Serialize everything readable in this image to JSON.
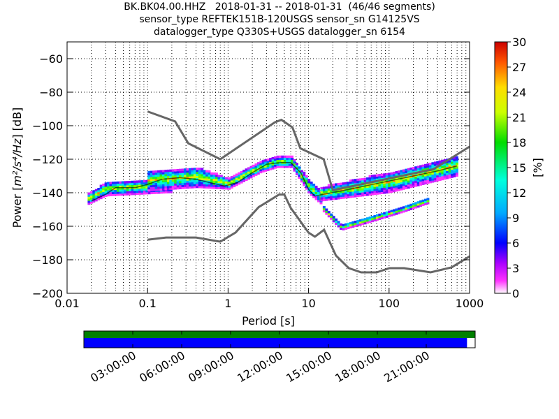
{
  "title": {
    "line1": "BK.BK04.00.HHZ   2018-01-31 -- 2018-01-31  (46/46 segments)",
    "line2": "sensor_type REFTEK151B-120USGS sensor_sn G14125VS",
    "line3": "datalogger_type Q330S+USGS datalogger_sn 6154"
  },
  "chart_data": [
    {
      "type": "heatmap",
      "xlabel": "Period [s]",
      "ylabel_prefix": "Power [",
      "ylabel_math": "m²/s⁴/Hz",
      "ylabel_suffix": "] [dB]",
      "x_scale": "log",
      "xlim": [
        0.01,
        1000
      ],
      "ylim": [
        -200,
        -50
      ],
      "x_ticks": [
        0.01,
        0.1,
        1,
        10,
        100,
        1000
      ],
      "x_tick_labels": [
        "0.01",
        "0.1",
        "1",
        "10",
        "100",
        "1000"
      ],
      "y_ticks": [
        -200,
        -180,
        -160,
        -140,
        -120,
        -100,
        -80,
        -60
      ],
      "y_tick_labels": [
        "−200",
        "−180",
        "−160",
        "−140",
        "−120",
        "−100",
        "−80",
        "−60"
      ],
      "grid": true,
      "colorbar": {
        "label": "[%]",
        "range": [
          0,
          30
        ],
        "ticks": [
          0,
          3,
          6,
          9,
          12,
          15,
          18,
          21,
          24,
          27,
          30
        ],
        "tick_labels": [
          "0",
          "3",
          "6",
          "9",
          "12",
          "15",
          "18",
          "21",
          "24",
          "27",
          "30"
        ]
      },
      "nhnm": {
        "x": [
          0.1,
          0.22,
          0.32,
          0.8,
          3.8,
          4.6,
          6.3,
          7.9,
          15.4,
          20,
          354.8,
          1000
        ],
        "y": [
          -91.5,
          -97.4,
          -110.5,
          -120,
          -98,
          -96.5,
          -101,
          -113.5,
          -120,
          -138.5,
          -126,
          -112.5
        ]
      },
      "nlnm": {
        "x": [
          0.1,
          0.17,
          0.4,
          0.8,
          1.24,
          2.4,
          4.3,
          5.0,
          6.0,
          10.0,
          12.0,
          15.6,
          21.9,
          31.6,
          45,
          70,
          101,
          154,
          328,
          600,
          1000
        ],
        "y": [
          -168,
          -166.7,
          -166.7,
          -169.2,
          -163.7,
          -148.6,
          -141.1,
          -141.1,
          -149,
          -163.8,
          -166.2,
          -162.1,
          -177.5,
          -185,
          -187.5,
          -187.5,
          -185,
          -185,
          -187.5,
          -184.5,
          -178
        ]
      },
      "mode_curve": {
        "x": [
          0.02,
          0.03,
          0.04,
          0.07,
          0.1,
          0.15,
          0.25,
          0.4,
          0.6,
          0.9,
          1.3,
          2.0,
          3.0,
          4.5,
          6.0,
          8.0,
          10.0,
          12.0,
          15.0,
          25.0,
          50.0,
          100.0,
          200.0,
          400.0,
          700.0
        ],
        "y": [
          -145,
          -141,
          -137,
          -137,
          -135,
          -132,
          -131,
          -132,
          -134,
          -136,
          -134,
          -128,
          -123,
          -122,
          -122,
          -128,
          -138,
          -142,
          -141,
          -139,
          -136,
          -133,
          -130,
          -127,
          -124
        ]
      },
      "density_bands": [
        {
          "x": [
            0.018,
            0.03,
            0.2
          ],
          "center": [
            -144,
            -138,
            -136
          ],
          "half_width": [
            3,
            4,
            4
          ]
        },
        {
          "x": [
            0.1,
            0.4,
            1.0
          ],
          "center": [
            -133,
            -131,
            -135
          ],
          "half_width": [
            6,
            6,
            3
          ]
        },
        {
          "x": [
            1.0,
            2.5,
            4.0,
            6.0
          ],
          "center": [
            -135,
            -125,
            -122,
            -122
          ],
          "half_width": [
            3,
            3,
            3,
            3
          ]
        },
        {
          "x": [
            6.0,
            10.0,
            14.0
          ],
          "center": [
            -122,
            -137,
            -143
          ],
          "half_width": [
            3,
            4,
            4
          ]
        },
        {
          "x": [
            14.0,
            100.0,
            700.0
          ],
          "center": [
            -141,
            -134,
            -124
          ],
          "half_width": [
            4,
            6,
            6
          ]
        },
        {
          "x": [
            15.0,
            25.0,
            50.0,
            150.0,
            300.0
          ],
          "center": [
            -150,
            -161,
            -157,
            -150,
            -145
          ],
          "half_width": [
            1.5,
            1.5,
            1.5,
            1.5,
            1.5
          ]
        }
      ]
    },
    {
      "type": "timeline",
      "tick_labels": [
        "03:00:00",
        "06:00:00",
        "09:00:00",
        "12:00:00",
        "15:00:00",
        "18:00:00",
        "21:00:00"
      ],
      "tick_hours": [
        3,
        6,
        9,
        12,
        15,
        18,
        21
      ],
      "range_hours": [
        0,
        24
      ],
      "data_coverage_hours": [
        0,
        23.5
      ],
      "colors": {
        "top_bar": "#008000",
        "bottom_bar": "#0000ff"
      }
    }
  ]
}
